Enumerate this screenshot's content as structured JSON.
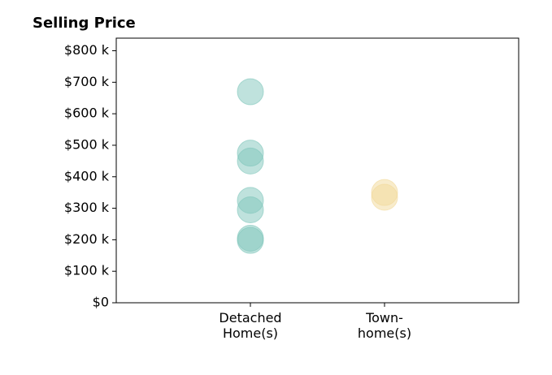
{
  "chart_data": {
    "type": "scatter",
    "title": "Selling Price",
    "categories": [
      "Detached\nHome(s)",
      "Town-\nhome(s)"
    ],
    "values": [
      [
        670000,
        475000,
        450000,
        325000,
        295000,
        205000,
        198000
      ],
      [
        350000,
        335000
      ]
    ],
    "colors": [
      "#7fc6bb",
      "#f2d99a"
    ],
    "ylim": [
      0,
      840000
    ],
    "yticks": [
      {
        "value": 0,
        "label": "$0"
      },
      {
        "value": 100000,
        "label": "$100 k"
      },
      {
        "value": 200000,
        "label": "$200 k"
      },
      {
        "value": 300000,
        "label": "$300 k"
      },
      {
        "value": 400000,
        "label": "$400 k"
      },
      {
        "value": 500000,
        "label": "$500 k"
      },
      {
        "value": 600000,
        "label": "$600 k"
      },
      {
        "value": 700000,
        "label": "$700 k"
      },
      {
        "value": 800000,
        "label": "$800 k"
      }
    ],
    "grid": false
  }
}
